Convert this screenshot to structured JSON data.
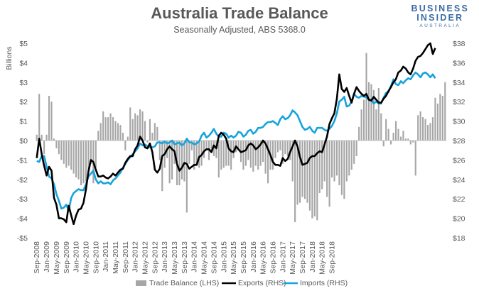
{
  "header": {
    "title": "Australia Trade Balance",
    "subtitle": "Seasonally Adjusted, ABS 5368.0"
  },
  "logo": {
    "line1": "BUSINESS",
    "line2": "INSIDER",
    "line3": "AUSTRALIA"
  },
  "colors": {
    "balance": "#a6a6a6",
    "exports": "#000000",
    "imports": "#17a3dc",
    "axis": "#bfbfbf",
    "text": "#595959",
    "logo": "#3b6da3"
  },
  "chart_data": {
    "type": "bar+line",
    "title": "Australia Trade Balance",
    "subtitle": "Seasonally Adjusted, ABS 5368.0",
    "ylabel": "Billions",
    "ylim_left": [
      -5,
      5
    ],
    "ylim_right": [
      18,
      38
    ],
    "y_ticks_left": [
      "$5",
      "$4",
      "$3",
      "$2",
      "$1",
      "$0",
      "-$1",
      "-$2",
      "-$3",
      "-$4",
      "-$5"
    ],
    "y_ticks_right": [
      "$38",
      "$36",
      "$34",
      "$32",
      "$30",
      "$28",
      "$26",
      "$24",
      "$22",
      "$20",
      "$18"
    ],
    "x_start": "Sep-2008",
    "x_ticks": [
      "Sep-2008",
      "Jan-2009",
      "May-2009",
      "Sep-2009",
      "Jan-2010",
      "May-2010",
      "Sep-2010",
      "Jan-2011",
      "May-2011",
      "Sep-2011",
      "Jan-2012",
      "May-2012",
      "Sep-2012",
      "Jan-2013",
      "May-2013",
      "Sep-2013",
      "Jan-2014",
      "May-2014",
      "Sep-2014",
      "Jan-2015",
      "May-2015",
      "Sep-2015",
      "Jan-2016",
      "May-2016",
      "Sep-2016",
      "Jan-2017",
      "May-2017",
      "Sep-2017",
      "Jan-2018",
      "May-2018",
      "Sep-2018"
    ],
    "grid": false,
    "legend_position": "bottom",
    "series": [
      {
        "name": "Trade Balance (LHS)",
        "type": "bar",
        "axis": "left",
        "values": [
          0.3,
          2.4,
          0.3,
          -0.7,
          0.3,
          2.3,
          2.0,
          0.1,
          -0.4,
          -0.7,
          -1.0,
          -1.2,
          -1.4,
          -1.3,
          -1.5,
          -1.7,
          -1.9,
          -2.0,
          -2.3,
          -2.2,
          -2.1,
          -1.6,
          -1.2,
          -2.2,
          -1.4,
          0.5,
          0.9,
          1.5,
          1.2,
          1.2,
          1.4,
          1.2,
          1.0,
          0.9,
          0.8,
          0.4,
          -0.5,
          0.2,
          1.7,
          1.1,
          1.4,
          1.3,
          1.6,
          1.5,
          1.0,
          -0.1,
          1.1,
          0.4,
          0.9,
          0.7,
          -1.0,
          -2.6,
          -1.4,
          -0.9,
          -2.2,
          -2.0,
          -1.2,
          -2.3,
          -2.3,
          -2.0,
          -2.1,
          -3.7,
          -1.2,
          -0.5,
          -1.5,
          -1.3,
          -1.4,
          -1.3,
          -0.9,
          -0.4,
          -1.0,
          -0.6,
          -0.8,
          -0.9,
          -1.9,
          -1.5,
          -1.4,
          -1.3,
          -1.3,
          -1.5,
          -0.9,
          -0.6,
          -0.5,
          -1.1,
          -1.5,
          -1.3,
          -1.0,
          -1.4,
          -1.6,
          -1.3,
          -1.5,
          -1.3,
          -1.1,
          -1.7,
          -2.2,
          -1.5,
          -1.5,
          -0.9,
          -0.6,
          -0.5,
          -1.2,
          -0.7,
          -0.8,
          -1.0,
          -2.1,
          -4.2,
          -3.3,
          -3.2,
          -2.9,
          -3.0,
          -3.2,
          -3.6,
          -4.0,
          -3.9,
          -4.1,
          -2.7,
          -2.5,
          -2.1,
          -2.9,
          -3.4,
          -1.9,
          -2.1,
          -1.8,
          -2.3,
          -2.8,
          -3.0,
          -2.1,
          -1.8,
          -1.5,
          -1.2,
          -0.8,
          0.7,
          1.6,
          2.1,
          4.5,
          3.0,
          2.9,
          2.6,
          1.6,
          2.7,
          1.4,
          -0.3,
          1.1,
          0.6,
          -0.2,
          0.4,
          1.0,
          0.6,
          0.2,
          0.5,
          0.1,
          0.1,
          -0.2,
          -0.1,
          -1.8,
          1.3,
          1.5,
          1.2,
          1.1,
          0.8,
          0.9,
          1.2,
          2.2,
          1.9,
          2.4,
          2.3,
          3.0
        ]
      },
      {
        "name": "Exports (RHS)",
        "type": "line",
        "axis": "right",
        "values": [
          26.2,
          28.2,
          26.6,
          25.4,
          24.4,
          25.3,
          24.9,
          22.1,
          21.4,
          20.0,
          20.0,
          19.9,
          19.6,
          21.3,
          20.3,
          19.4,
          20.3,
          20.9,
          21.0,
          21.6,
          23.0,
          24.8,
          26.0,
          25.8,
          25.0,
          24.3,
          24.3,
          24.4,
          24.2,
          24.1,
          24.3,
          24.6,
          24.4,
          24.7,
          25.0,
          25.1,
          25.7,
          26.1,
          26.4,
          26.4,
          27.1,
          27.5,
          28.4,
          28.0,
          27.3,
          27.2,
          27.7,
          26.8,
          25.0,
          24.7,
          25.1,
          26.4,
          26.6,
          27.1,
          27.4,
          27.1,
          26.9,
          25.6,
          24.9,
          25.2,
          25.7,
          25.6,
          25.1,
          25.3,
          25.5,
          25.5,
          26.3,
          26.5,
          26.9,
          27.1,
          27.1,
          26.8,
          27.5,
          27.2,
          28.5,
          28.8,
          28.6,
          28.2,
          27.2,
          26.9,
          26.8,
          27.4,
          27.1,
          26.8,
          26.9,
          27.0,
          27.5,
          27.7,
          27.5,
          27.1,
          27.3,
          27.6,
          28.0,
          27.7,
          27.1,
          26.5,
          25.8,
          25.5,
          25.5,
          25.4,
          26.2,
          25.9,
          26.1,
          26.8,
          27.4,
          28.0,
          27.4,
          26.3,
          25.5,
          25.6,
          25.7,
          26.2,
          26.4,
          26.4,
          26.7,
          26.9,
          26.8,
          27.6,
          28.4,
          29.7,
          30.3,
          30.8,
          32.3,
          34.8,
          33.3,
          33.0,
          33.4,
          32.6,
          31.9,
          32.8,
          33.5,
          33.1,
          32.8,
          32.6,
          32.8,
          32.2,
          32.1,
          32.5,
          32.2,
          31.9,
          31.9,
          32.3,
          32.6,
          33.1,
          33.5,
          34.0,
          34.3,
          35.0,
          35.2,
          35.6,
          35.4,
          35.0,
          34.8,
          35.4,
          36.2,
          36.6,
          36.7,
          37.0,
          37.4,
          37.8,
          38.0,
          36.9,
          37.5
        ]
      },
      {
        "name": "Imports (RHS)",
        "type": "line",
        "axis": "right",
        "values": [
          25.9,
          25.8,
          26.4,
          26.4,
          25.3,
          24.3,
          24.1,
          23.5,
          22.5,
          21.8,
          21.0,
          21.1,
          21.4,
          20.8,
          22.1,
          22.6,
          22.8,
          23.0,
          22.9,
          22.9,
          23.5,
          24.3,
          24.6,
          24.9,
          24.0,
          23.6,
          23.8,
          23.6,
          23.6,
          23.7,
          23.5,
          23.9,
          24.1,
          24.4,
          24.7,
          25.2,
          25.6,
          26.0,
          26.3,
          26.6,
          26.9,
          27.2,
          27.7,
          27.5,
          27.6,
          27.4,
          27.3,
          27.3,
          27.4,
          27.8,
          27.8,
          27.7,
          27.9,
          27.7,
          27.8,
          28.0,
          27.6,
          27.7,
          27.8,
          27.5,
          27.7,
          28.2,
          27.8,
          27.8,
          27.6,
          27.7,
          27.9,
          28.5,
          28.8,
          28.3,
          28.5,
          28.8,
          29.2,
          28.7,
          28.4,
          28.4,
          28.8,
          28.7,
          28.3,
          28.5,
          28.3,
          28.5,
          28.9,
          28.8,
          28.4,
          28.6,
          29.0,
          29.1,
          28.7,
          28.9,
          29.3,
          29.3,
          29.4,
          29.7,
          29.9,
          29.9,
          30.0,
          29.8,
          29.6,
          30.2,
          30.5,
          30.2,
          30.3,
          30.6,
          31.1,
          30.9,
          30.6,
          30.0,
          29.4,
          29.1,
          29.2,
          29.4,
          29.0,
          28.8,
          29.3,
          29.3,
          29.3,
          29.1,
          29.0,
          29.2,
          29.5,
          30.0,
          30.8,
          32.0,
          32.2,
          32.5,
          31.5,
          31.6,
          32.0,
          32.8,
          32.5,
          32.4,
          32.6,
          32.5,
          32.5,
          32.2,
          32.2,
          31.8,
          32.0,
          31.8,
          31.8,
          32.4,
          32.9,
          33.0,
          33.6,
          34.3,
          33.8,
          33.7,
          34.1,
          33.9,
          34.2,
          34.4,
          34.3,
          34.7,
          35.0,
          34.8,
          34.5,
          34.9,
          35.0,
          34.8,
          34.5,
          34.8,
          34.4
        ]
      }
    ]
  }
}
